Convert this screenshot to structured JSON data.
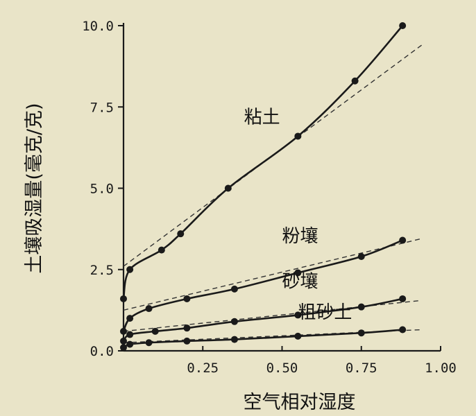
{
  "chart_data": {
    "type": "line",
    "title": "",
    "xlabel": "空气相对湿度",
    "ylabel": "土壤吸湿量(毫克/克)",
    "xlim": [
      0,
      1.0
    ],
    "ylim": [
      0,
      10.0
    ],
    "x_ticks": [
      "0.25",
      "0.50",
      "0.75",
      "1.00"
    ],
    "y_ticks": [
      "0.0",
      "2.5",
      "5.0",
      "7.5",
      "10.0"
    ],
    "grid": false,
    "legend": "none",
    "colors": {
      "line": "#1a1a1a",
      "background": "#e9e4c8",
      "tangent": "#333333"
    },
    "series": [
      {
        "name": "粘土",
        "points": [
          [
            0.0,
            1.6
          ],
          [
            0.02,
            2.5
          ],
          [
            0.12,
            3.1
          ],
          [
            0.18,
            3.6
          ],
          [
            0.33,
            5.0
          ],
          [
            0.55,
            6.6
          ],
          [
            0.73,
            8.3
          ],
          [
            0.88,
            10.0
          ]
        ],
        "tangent": [
          [
            0.0,
            2.6
          ],
          [
            0.94,
            9.4
          ]
        ]
      },
      {
        "name": "粉壤",
        "points": [
          [
            0.0,
            0.6
          ],
          [
            0.02,
            1.0
          ],
          [
            0.08,
            1.3
          ],
          [
            0.2,
            1.6
          ],
          [
            0.35,
            1.9
          ],
          [
            0.55,
            2.4
          ],
          [
            0.75,
            2.9
          ],
          [
            0.88,
            3.4
          ]
        ],
        "tangent": [
          [
            0.0,
            1.25
          ],
          [
            0.94,
            3.45
          ]
        ]
      },
      {
        "name": "砂壤",
        "points": [
          [
            0.0,
            0.3
          ],
          [
            0.02,
            0.5
          ],
          [
            0.1,
            0.6
          ],
          [
            0.2,
            0.7
          ],
          [
            0.35,
            0.9
          ],
          [
            0.55,
            1.1
          ],
          [
            0.75,
            1.35
          ],
          [
            0.88,
            1.6
          ]
        ],
        "tangent": [
          [
            0.0,
            0.6
          ],
          [
            0.94,
            1.55
          ]
        ]
      },
      {
        "name": "粗砂土",
        "points": [
          [
            0.0,
            0.1
          ],
          [
            0.02,
            0.2
          ],
          [
            0.08,
            0.25
          ],
          [
            0.2,
            0.3
          ],
          [
            0.35,
            0.35
          ],
          [
            0.55,
            0.45
          ],
          [
            0.75,
            0.55
          ],
          [
            0.88,
            0.65
          ]
        ],
        "tangent": [
          [
            0.0,
            0.25
          ],
          [
            0.94,
            0.65
          ]
        ]
      }
    ],
    "series_label_anchor": [
      [
        0.38,
        7.0
      ],
      [
        0.5,
        3.35
      ],
      [
        0.5,
        1.95
      ],
      [
        0.55,
        1.0
      ]
    ]
  }
}
